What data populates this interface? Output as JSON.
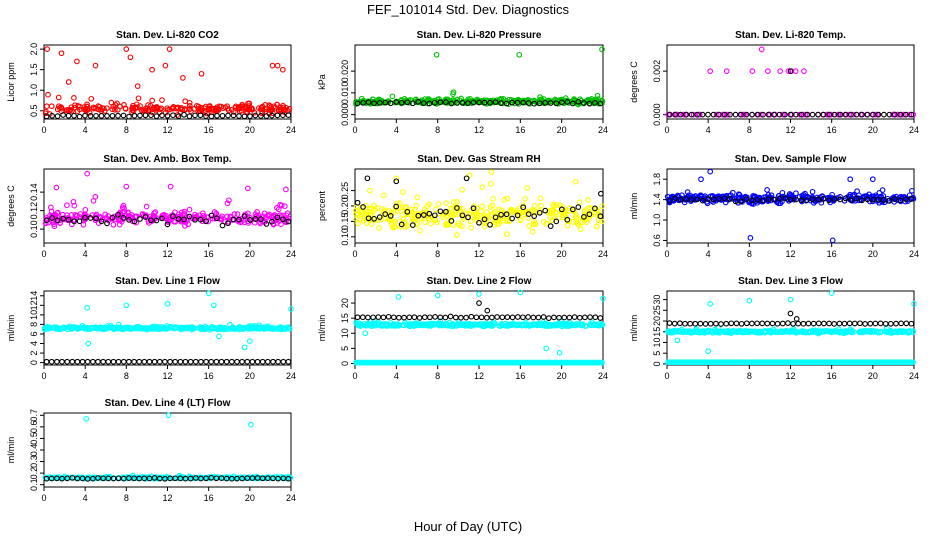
{
  "figure": {
    "title": "FEF_101014  Std. Dev. Diagnostics",
    "xlabel": "Hour of Day (UTC)"
  },
  "chart_data": [
    {
      "type": "scatter",
      "title": "Stan. Dev. Li-820 CO2",
      "ylabel": "Licor ppm",
      "xlim": [
        0,
        24
      ],
      "xticks": [
        0,
        4,
        8,
        12,
        16,
        20,
        24
      ],
      "ylim": [
        0.3,
        2.1
      ],
      "yticks": [
        "0.5",
        "1.0",
        "1.5",
        "2.0"
      ],
      "color": "#ff0000",
      "main": {
        "base": 0.55,
        "spread": 0.18,
        "n": 240,
        "outliers": [
          [
            0.3,
            2.0
          ],
          [
            1.7,
            1.9
          ],
          [
            3.2,
            1.7
          ],
          [
            5.0,
            1.6
          ],
          [
            8.0,
            2.0
          ],
          [
            8.4,
            1.8
          ],
          [
            10.5,
            1.5
          ],
          [
            11.8,
            1.6
          ],
          [
            12.2,
            2.0
          ],
          [
            13.5,
            1.3
          ],
          [
            15.3,
            1.4
          ],
          [
            22.2,
            1.6
          ],
          [
            22.7,
            1.6
          ],
          [
            23.2,
            1.5
          ],
          [
            9.1,
            1.1
          ],
          [
            2.4,
            1.2
          ]
        ]
      },
      "black": {
        "base": 0.38,
        "spread": 0.03,
        "n": 45,
        "outliers": []
      }
    },
    {
      "type": "scatter",
      "title": "Stan. Dev. Li-820 Pressure",
      "ylabel": "kPa",
      "xlim": [
        0,
        24
      ],
      "xticks": [
        0,
        4,
        8,
        12,
        16,
        20,
        24
      ],
      "ylim": [
        -0.002,
        0.032
      ],
      "yticks": [
        "0.000",
        "0.010",
        "0.020"
      ],
      "color": "#00c000",
      "main": {
        "base": 0.006,
        "spread": 0.002,
        "n": 320,
        "outliers": [
          [
            7.9,
            0.0275
          ],
          [
            15.9,
            0.0275
          ],
          [
            23.9,
            0.03
          ]
        ]
      },
      "black": {
        "base": 0.0055,
        "spread": 0.0008,
        "n": 45,
        "outliers": []
      }
    },
    {
      "type": "scatter",
      "title": "Stan. Dev. Li-820 Temp.",
      "ylabel": "degrees C",
      "xlim": [
        0,
        24
      ],
      "xticks": [
        0,
        4,
        8,
        12,
        16,
        20,
        24
      ],
      "ylim": [
        -0.0002,
        0.0032
      ],
      "yticks": [
        "0.000",
        "0.002"
      ],
      "color": "#ff00ff",
      "main": {
        "base": 0.0,
        "spread": 0.0,
        "n": 70,
        "outliers": [
          [
            4.2,
            0.002
          ],
          [
            5.8,
            0.002
          ],
          [
            8.3,
            0.002
          ],
          [
            9.2,
            0.003
          ],
          [
            9.8,
            0.002
          ],
          [
            11.0,
            0.002
          ],
          [
            11.8,
            0.002
          ],
          [
            12.1,
            0.002
          ],
          [
            12.5,
            0.002
          ],
          [
            13.3,
            0.002
          ]
        ]
      },
      "black": {
        "base": 0.0,
        "spread": 0.0,
        "n": 45,
        "outliers": [
          [
            12.0,
            0.002
          ]
        ]
      }
    },
    {
      "type": "scatter",
      "title": "Stan. Dev. Amb. Box Temp.",
      "ylabel": "degrees C",
      "xlim": [
        0,
        24
      ],
      "xticks": [
        0,
        4,
        8,
        12,
        16,
        20,
        24
      ],
      "ylim": [
        0.085,
        0.165
      ],
      "yticks": [
        "0.10",
        "0.12",
        "0.14"
      ],
      "color": "#ff00ff",
      "main": {
        "base": 0.112,
        "spread": 0.012,
        "n": 300,
        "outliers": [
          [
            4.2,
            0.16
          ],
          [
            1.2,
            0.145
          ],
          [
            8.0,
            0.146
          ],
          [
            12.3,
            0.146
          ],
          [
            19.8,
            0.144
          ],
          [
            23.5,
            0.143
          ]
        ]
      },
      "black": {
        "base": 0.11,
        "spread": 0.009,
        "n": 45,
        "outliers": []
      }
    },
    {
      "type": "scatter",
      "title": "Stan. Dev. Gas Stream RH",
      "ylabel": "percent",
      "xlim": [
        0,
        24
      ],
      "xticks": [
        0,
        4,
        8,
        12,
        16,
        20,
        24
      ],
      "ylim": [
        0.08,
        0.32
      ],
      "yticks": [
        "0.10",
        "0.15",
        "0.20",
        "0.25"
      ],
      "color": "#ffff00",
      "main": {
        "base": 0.17,
        "spread": 0.07,
        "n": 330,
        "outliers": [
          [
            13.2,
            0.31
          ],
          [
            11.1,
            0.3
          ],
          [
            4.0,
            0.29
          ]
        ]
      },
      "black": {
        "base": 0.17,
        "spread": 0.06,
        "n": 45,
        "outliers": [
          [
            1.2,
            0.29
          ],
          [
            4.0,
            0.28
          ],
          [
            10.8,
            0.29
          ],
          [
            23.8,
            0.24
          ]
        ]
      }
    },
    {
      "type": "scatter",
      "title": "Stan. Dev. Sample Flow",
      "ylabel": "ml/min",
      "xlim": [
        0,
        24
      ],
      "xticks": [
        0,
        4,
        8,
        12,
        16,
        20,
        24
      ],
      "ylim": [
        0.55,
        2.0
      ],
      "yticks": [
        "0.6",
        "1.0",
        "1.4",
        "1.8"
      ],
      "color": "#0000ff",
      "main": {
        "base": 1.42,
        "spread": 0.14,
        "n": 320,
        "outliers": [
          [
            4.2,
            1.95
          ],
          [
            3.3,
            1.8
          ],
          [
            8.1,
            0.65
          ],
          [
            16.1,
            0.6
          ],
          [
            17.8,
            1.8
          ],
          [
            20.0,
            1.8
          ]
        ]
      },
      "black": {
        "base": 1.4,
        "spread": 0.06,
        "n": 45,
        "outliers": []
      }
    },
    {
      "type": "scatter",
      "title": "Stan. Dev. Line 1 Flow",
      "ylabel": "ml/min",
      "xlim": [
        0,
        24
      ],
      "xticks": [
        0,
        4,
        8,
        12,
        16,
        20,
        24
      ],
      "ylim": [
        -0.5,
        15
      ],
      "yticks": [
        "0",
        "2",
        "4",
        "6",
        "8",
        "10",
        "12",
        "14"
      ],
      "color": "#00ffff",
      "main": {
        "base": 7.2,
        "spread": 0.4,
        "n": 380,
        "outliers": [
          [
            4.2,
            11.5
          ],
          [
            8.0,
            12.0
          ],
          [
            12.0,
            12.3
          ],
          [
            16.0,
            14.5
          ],
          [
            16.5,
            12.0
          ],
          [
            24.0,
            11.2
          ],
          [
            4.3,
            4.0
          ],
          [
            17.0,
            5.5
          ],
          [
            19.5,
            3.2
          ],
          [
            20.0,
            4.5
          ]
        ]
      },
      "black": {
        "base": 0.2,
        "spread": 0.0,
        "n": 48,
        "outliers": []
      }
    },
    {
      "type": "scatter",
      "title": "Stan. Dev. Line 2 Flow",
      "ylabel": "ml/min",
      "xlim": [
        0,
        24
      ],
      "xticks": [
        0,
        4,
        8,
        12,
        16,
        20,
        24
      ],
      "ylim": [
        -0.5,
        24
      ],
      "yticks": [
        "0",
        "5",
        "10",
        "15",
        "20"
      ],
      "color": "#00ffff",
      "main": {
        "base": 12.8,
        "spread": 0.8,
        "n": 360,
        "outliers": [
          [
            4.2,
            22.0
          ],
          [
            8.0,
            22.5
          ],
          [
            12.0,
            23.0
          ],
          [
            16.0,
            23.5
          ],
          [
            24.0,
            21.5
          ],
          [
            18.5,
            5.0
          ],
          [
            19.8,
            3.5
          ],
          [
            1.0,
            10.0
          ]
        ]
      },
      "black": {
        "base": 15.3,
        "spread": 0.4,
        "n": 48,
        "outliers": [
          [
            12.0,
            20.0
          ],
          [
            12.8,
            17.5
          ]
        ]
      },
      "floor": {
        "value": 0.3,
        "n": 240
      }
    },
    {
      "type": "scatter",
      "title": "Stan. Dev. Line 3 Flow",
      "ylabel": "ml/min",
      "xlim": [
        0,
        24
      ],
      "xticks": [
        0,
        4,
        8,
        12,
        16,
        20,
        24
      ],
      "ylim": [
        -0.5,
        34
      ],
      "yticks": [
        "0",
        "5",
        "10",
        "15",
        "20",
        "25",
        "30"
      ],
      "color": "#00ffff",
      "main": {
        "base": 15.0,
        "spread": 0.9,
        "n": 360,
        "outliers": [
          [
            4.2,
            28.0
          ],
          [
            8.0,
            29.5
          ],
          [
            12.0,
            30.0
          ],
          [
            16.0,
            33.0
          ],
          [
            24.0,
            28.0
          ],
          [
            4.0,
            6.0
          ],
          [
            1.0,
            11.0
          ]
        ]
      },
      "black": {
        "base": 18.8,
        "spread": 0.4,
        "n": 48,
        "outliers": [
          [
            12.0,
            23.5
          ],
          [
            12.6,
            21.0
          ]
        ]
      },
      "floor": {
        "value": 0.8,
        "n": 240
      }
    },
    {
      "type": "scatter",
      "title": "Stan. Dev. Line 4 (LT) Flow",
      "ylabel": "ml/min",
      "xlim": [
        0,
        24
      ],
      "xticks": [
        0,
        4,
        8,
        12,
        16,
        20,
        24
      ],
      "ylim": [
        0.08,
        0.72
      ],
      "yticks": [
        "0.1",
        "0.2",
        "0.3",
        "0.4",
        "0.5",
        "0.6",
        "0.7"
      ],
      "color": "#00ffff",
      "main": {
        "base": 0.16,
        "spread": 0.012,
        "n": 300,
        "outliers": [
          [
            4.1,
            0.67
          ],
          [
            12.1,
            0.7
          ],
          [
            20.1,
            0.62
          ]
        ]
      },
      "black": {
        "base": 0.155,
        "spread": 0.008,
        "n": 48,
        "outliers": []
      }
    }
  ]
}
